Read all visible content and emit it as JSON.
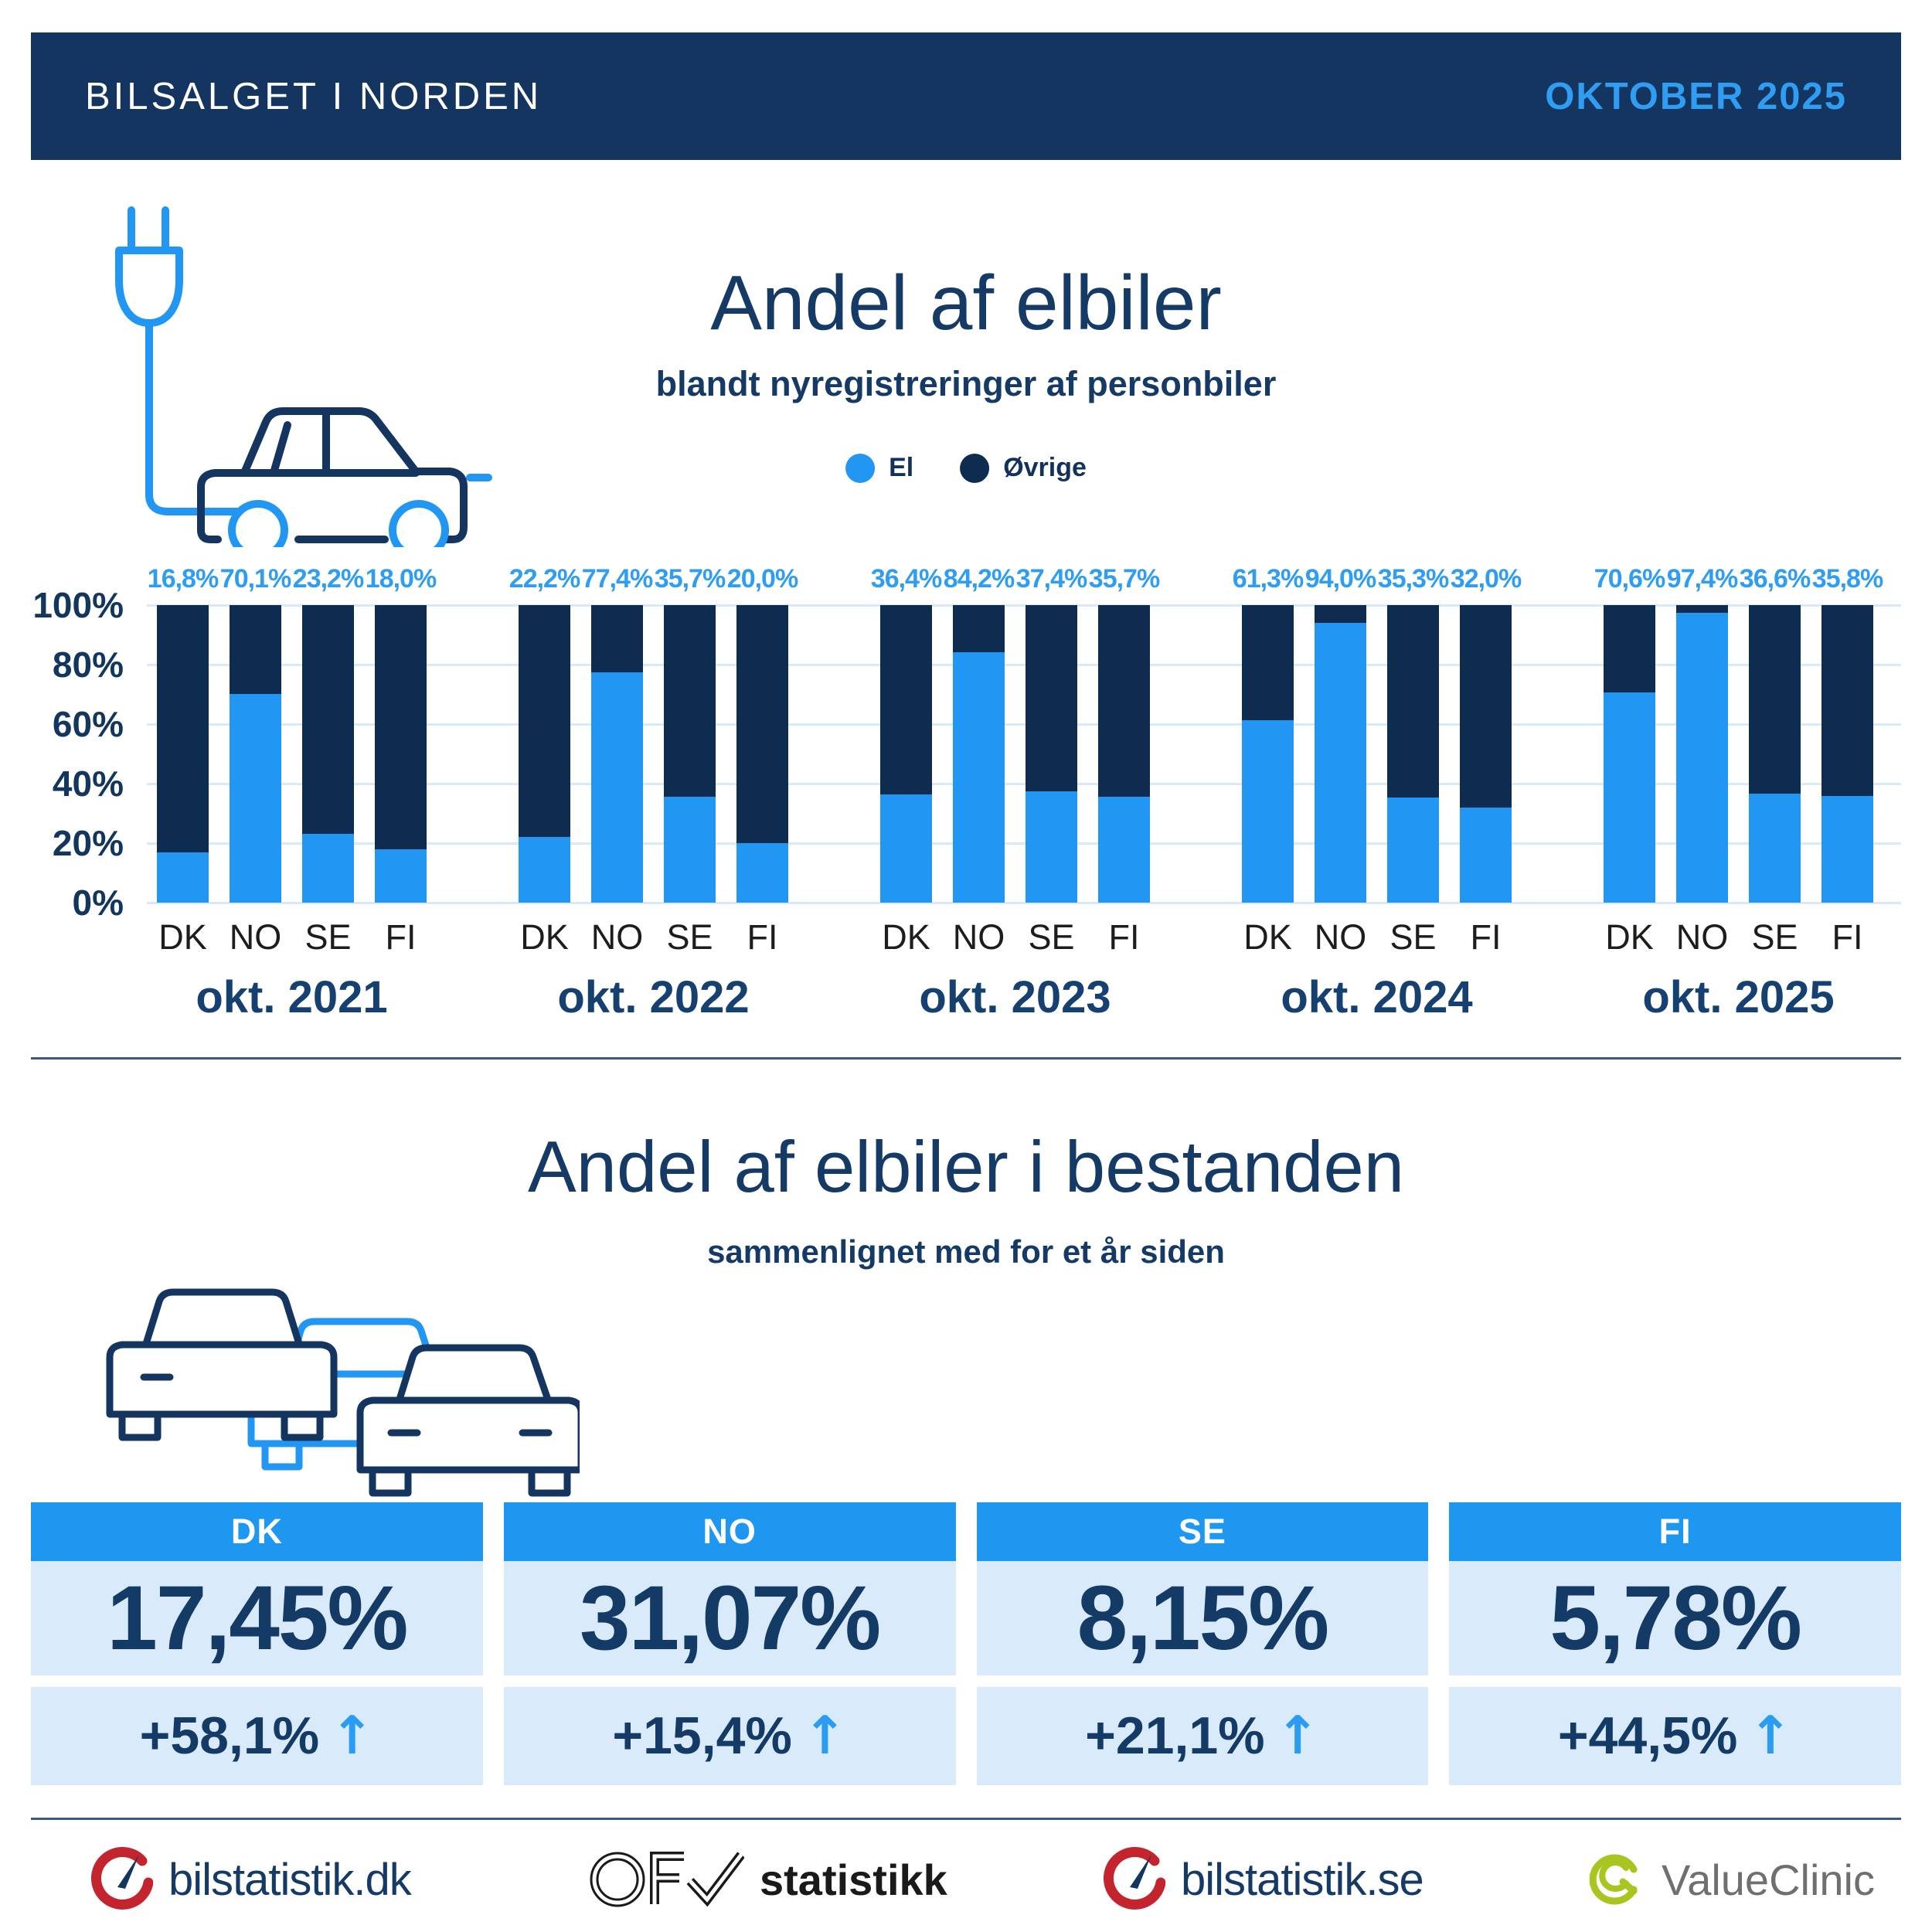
{
  "colors": {
    "navy_header": "#14355F",
    "navy_bar": "#0D2C4F",
    "navy_text": "#163A66",
    "accent_blue": "#2196F3",
    "label_blue": "#2F9DF2",
    "pale_blue": "#D9EAFB",
    "gridline": "#D8E9FA",
    "logo_red": "#C4242E",
    "logo_green": "#A9C520"
  },
  "header": {
    "title": "BILSALGET I NORDEN",
    "period": "OKTOBER 2025"
  },
  "new_registrations": {
    "title": "Andel af elbiler",
    "subtitle": "blandt nyregistreringer af personbiler",
    "legend": [
      {
        "label": "El",
        "color": "#2196F3"
      },
      {
        "label": "Øvrige",
        "color": "#0D2C4F"
      }
    ]
  },
  "chart_data": {
    "type": "bar",
    "stacked": true,
    "title": "Andel af elbiler blandt nyregistreringer af personbiler",
    "unit": "%",
    "ylim": [
      0,
      100
    ],
    "yticks": [
      "0%",
      "20%",
      "40%",
      "60%",
      "80%",
      "100%"
    ],
    "grid": true,
    "legend_position": "top",
    "categories": [
      "DK",
      "NO",
      "SE",
      "FI"
    ],
    "series_names": [
      "El",
      "Øvrige"
    ],
    "groups": [
      {
        "label": "okt. 2021",
        "el_share_pct": [
          16.8,
          70.1,
          23.2,
          18.0
        ],
        "value_labels": [
          "16,8%",
          "70,1%",
          "23,2%",
          "18,0%"
        ]
      },
      {
        "label": "okt. 2022",
        "el_share_pct": [
          22.2,
          77.4,
          35.7,
          20.0
        ],
        "value_labels": [
          "22,2%",
          "77,4%",
          "35,7%",
          "20,0%"
        ]
      },
      {
        "label": "okt. 2023",
        "el_share_pct": [
          36.4,
          84.2,
          37.4,
          35.7
        ],
        "value_labels": [
          "36,4%",
          "84,2%",
          "37,4%",
          "35,7%"
        ]
      },
      {
        "label": "okt. 2024",
        "el_share_pct": [
          61.3,
          94.0,
          35.3,
          32.0
        ],
        "value_labels": [
          "61,3%",
          "94,0%",
          "35,3%",
          "32,0%"
        ]
      },
      {
        "label": "okt. 2025",
        "el_share_pct": [
          70.6,
          97.4,
          36.6,
          35.8
        ],
        "value_labels": [
          "70,6%",
          "97,4%",
          "36,6%",
          "35,8%"
        ]
      }
    ]
  },
  "fleet": {
    "title": "Andel af elbiler i bestanden",
    "subtitle": "sammenlignet med for et år siden",
    "cards": [
      {
        "country": "DK",
        "share": "17,45%",
        "change": "+58,1%",
        "direction": "up"
      },
      {
        "country": "NO",
        "share": "31,07%",
        "change": "+15,4%",
        "direction": "up"
      },
      {
        "country": "SE",
        "share": "8,15%",
        "change": "+21,1%",
        "direction": "up"
      },
      {
        "country": "FI",
        "share": "5,78%",
        "change": "+44,5%",
        "direction": "up"
      }
    ]
  },
  "icons": {
    "arrow_up": "↑"
  },
  "footer": {
    "logo_dk": "bilstatistik.dk",
    "logo_ofv": "statistikk",
    "logo_se": "bilstatistik.se",
    "logo_vc": "ValueClinic"
  }
}
